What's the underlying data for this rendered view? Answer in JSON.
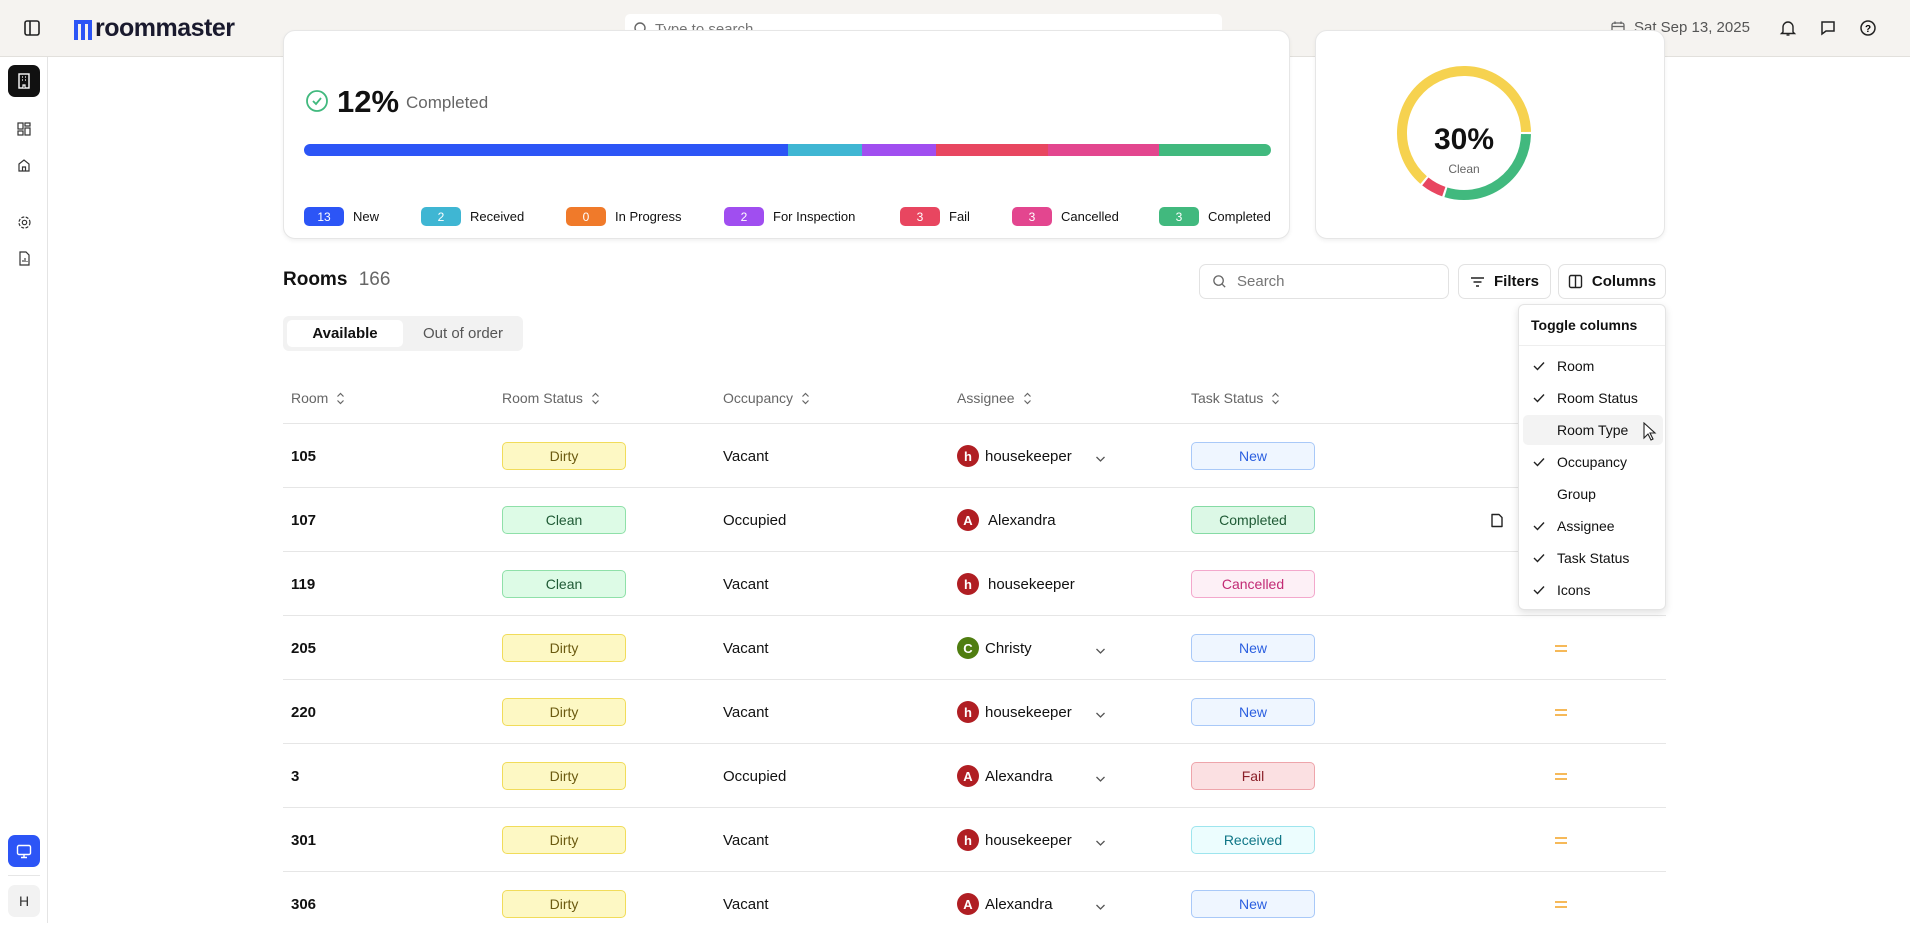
{
  "header": {
    "app_name": "roommaster",
    "search_placeholder": "Type to search...",
    "date": "Sat Sep 13, 2025"
  },
  "sidebar": {
    "items": [
      "building-icon",
      "dashboard-icon",
      "home-icon",
      "settings-icon",
      "report-icon"
    ],
    "bottom_user_initial": "H"
  },
  "summary": {
    "percent": "12%",
    "label": "Completed",
    "statuses": [
      {
        "label": "New",
        "count": 13,
        "color": "#2c55f6"
      },
      {
        "label": "Received",
        "count": 2,
        "color": "#3fb6d3"
      },
      {
        "label": "In Progress",
        "count": 0,
        "color": "#f07a2a"
      },
      {
        "label": "For Inspection",
        "count": 2,
        "color": "#a04ef0"
      },
      {
        "label": "Fail",
        "count": 3,
        "color": "#e84660"
      },
      {
        "label": "Cancelled",
        "count": 3,
        "color": "#e3468f"
      },
      {
        "label": "Completed",
        "count": 3,
        "color": "#41b97e"
      }
    ]
  },
  "donut": {
    "percent": "30%",
    "label": "Clean",
    "segments": [
      {
        "color": "#41b97e",
        "value": 30
      },
      {
        "color": "#e84660",
        "value": 6
      },
      {
        "color": "#f6d24f",
        "value": 64
      }
    ]
  },
  "rooms": {
    "title": "Rooms",
    "count": "166",
    "search_placeholder": "Search",
    "filters_label": "Filters",
    "columns_label": "Columns",
    "tabs": [
      {
        "label": "Available",
        "active": true
      },
      {
        "label": "Out of order",
        "active": false
      }
    ],
    "columns": [
      "Room",
      "Room Status",
      "Occupancy",
      "Assignee",
      "Task Status"
    ],
    "rows": [
      {
        "room": "105",
        "status": "Dirty",
        "occupancy": "Vacant",
        "assignee": "housekeeper",
        "initial": "h",
        "dropdown": true,
        "task": "New",
        "icon": ""
      },
      {
        "room": "107",
        "status": "Clean",
        "occupancy": "Occupied",
        "assignee": "Alexandra",
        "initial": "A",
        "dropdown": false,
        "task": "Completed",
        "icon": "note-icon"
      },
      {
        "room": "119",
        "status": "Clean",
        "occupancy": "Vacant",
        "assignee": "housekeeper",
        "initial": "h",
        "dropdown": false,
        "task": "Cancelled",
        "icon": ""
      },
      {
        "room": "205",
        "status": "Dirty",
        "occupancy": "Vacant",
        "assignee": "Christy",
        "initial": "C",
        "dropdown": true,
        "task": "New",
        "icon": "priority-medium-icon"
      },
      {
        "room": "220",
        "status": "Dirty",
        "occupancy": "Vacant",
        "assignee": "housekeeper",
        "initial": "h",
        "dropdown": true,
        "task": "New",
        "icon": "priority-medium-icon"
      },
      {
        "room": "3",
        "status": "Dirty",
        "occupancy": "Occupied",
        "assignee": "Alexandra",
        "initial": "A",
        "dropdown": true,
        "task": "Fail",
        "icon": "priority-medium-icon"
      },
      {
        "room": "301",
        "status": "Dirty",
        "occupancy": "Vacant",
        "assignee": "housekeeper",
        "initial": "h",
        "dropdown": true,
        "task": "Received",
        "icon": "priority-medium-icon"
      },
      {
        "room": "306",
        "status": "Dirty",
        "occupancy": "Vacant",
        "assignee": "Alexandra",
        "initial": "A",
        "dropdown": true,
        "task": "New",
        "icon": "priority-medium-icon"
      }
    ]
  },
  "toggle_columns": {
    "title": "Toggle columns",
    "items": [
      {
        "label": "Room",
        "checked": true
      },
      {
        "label": "Room Status",
        "checked": true
      },
      {
        "label": "Room Type",
        "checked": false,
        "hovered": true
      },
      {
        "label": "Occupancy",
        "checked": true
      },
      {
        "label": "Group",
        "checked": false
      },
      {
        "label": "Assignee",
        "checked": true
      },
      {
        "label": "Task Status",
        "checked": true
      },
      {
        "label": "Icons",
        "checked": true
      }
    ]
  }
}
